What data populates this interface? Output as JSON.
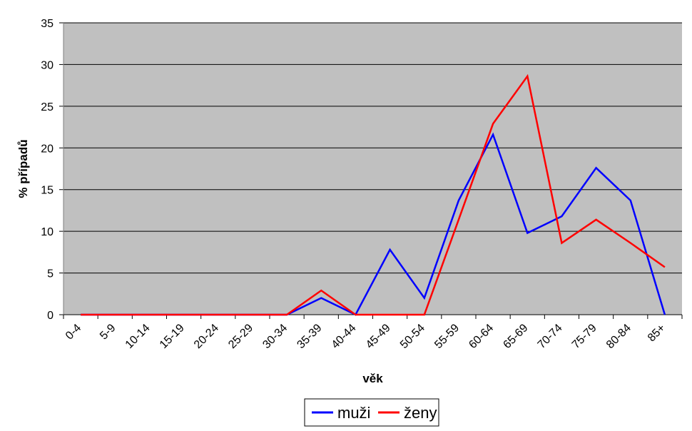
{
  "chart_data": {
    "type": "line",
    "title": "",
    "xlabel": "věk",
    "ylabel": "% případů",
    "categories": [
      "0-4",
      "5-9",
      "10-14",
      "15-19",
      "20-24",
      "25-29",
      "30-34",
      "35-39",
      "40-44",
      "45-49",
      "50-54",
      "55-59",
      "60-64",
      "65-69",
      "70-74",
      "75-79",
      "80-84",
      "85+"
    ],
    "ylim": [
      0,
      35
    ],
    "yticks": [
      "0",
      "5",
      "10",
      "15",
      "20",
      "25",
      "30",
      "35"
    ],
    "grid": true,
    "legend_position": "bottom",
    "series": [
      {
        "name": "muži",
        "color": "#0000ff",
        "values": [
          0,
          0,
          0,
          0,
          0,
          0,
          0,
          2.0,
          0,
          7.8,
          2.0,
          13.7,
          21.6,
          9.8,
          11.8,
          17.6,
          13.7,
          0
        ]
      },
      {
        "name": "ženy",
        "color": "#ff0000",
        "values": [
          0,
          0,
          0,
          0,
          0,
          0,
          0,
          2.9,
          0,
          0,
          0,
          11.4,
          22.9,
          28.6,
          8.6,
          11.4,
          8.6,
          5.7
        ]
      }
    ],
    "plot_background": "#c0c0c0"
  }
}
